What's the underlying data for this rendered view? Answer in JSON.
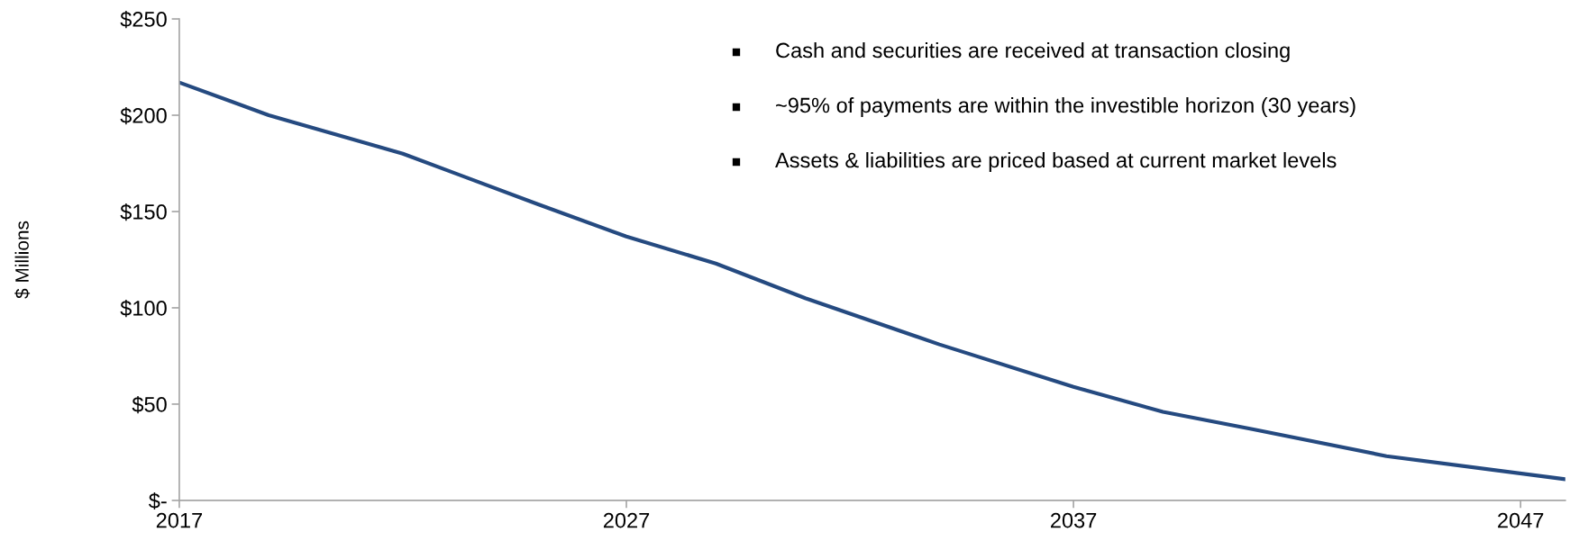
{
  "chart_data": {
    "type": "line",
    "ylabel": "$ Millions",
    "x": [
      2017,
      2019,
      2022,
      2025,
      2027,
      2029,
      2031,
      2034,
      2037,
      2039,
      2041,
      2044,
      2048
    ],
    "series": [
      {
        "color": "#254a80",
        "values": [
          217,
          200,
          180,
          154,
          137,
          123,
          105,
          81,
          59,
          46,
          37,
          23,
          11
        ]
      }
    ],
    "xlim": [
      2017,
      2048
    ],
    "xticks": [
      2017,
      2027,
      2037,
      2047
    ],
    "ylim": [
      0,
      250
    ],
    "yticks": [
      {
        "value": 0,
        "label": "$-"
      },
      {
        "value": 50,
        "label": "$50"
      },
      {
        "value": 100,
        "label": "$100"
      },
      {
        "value": 150,
        "label": "$150"
      },
      {
        "value": 200,
        "label": "$200"
      },
      {
        "value": 250,
        "label": "$250"
      }
    ],
    "grid": false,
    "marker": "none",
    "line_style": "solid",
    "annotations": [
      "Cash and securities are received at transaction closing",
      "~95% of payments are within the investible horizon (30 years)",
      "Assets & liabilities are priced based at current market levels"
    ]
  }
}
